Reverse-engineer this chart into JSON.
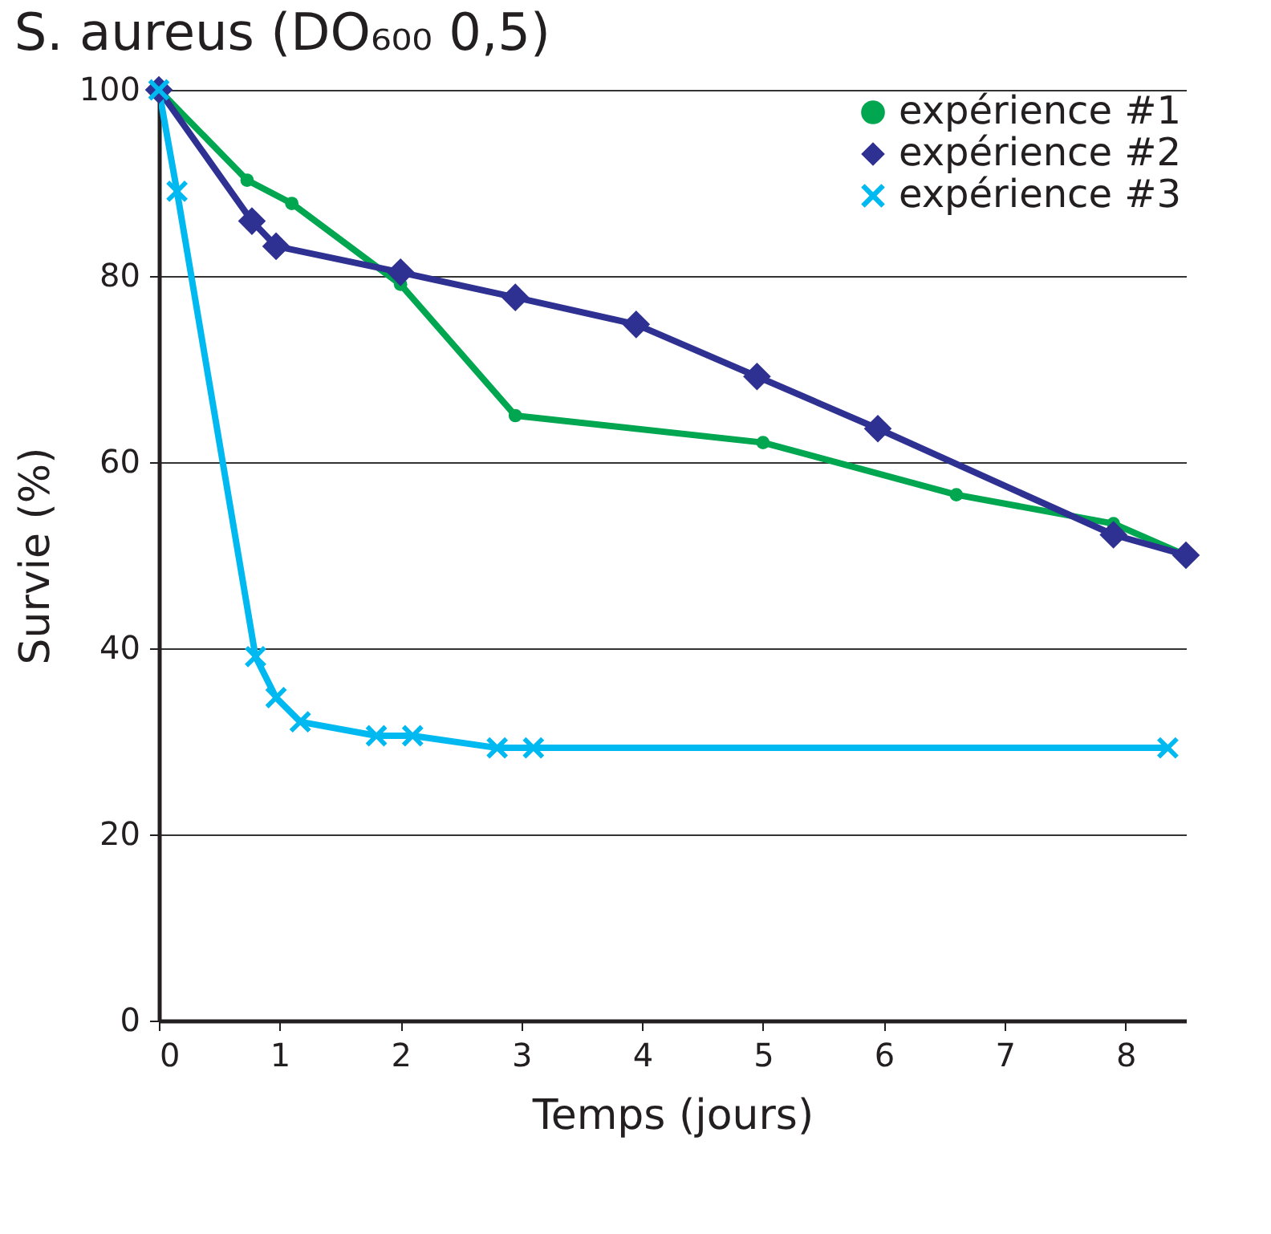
{
  "chart_data": {
    "type": "line",
    "title": "S. aureus (DO₆₀₀ 0,5)",
    "xlabel": "Temps (jours)",
    "ylabel": "Survie (%)",
    "xlim": [
      0,
      8.5
    ],
    "xticks": [
      0,
      1,
      2,
      3,
      4,
      5,
      6,
      7,
      8
    ],
    "ylim": [
      0,
      100
    ],
    "yticks": [
      0,
      20,
      40,
      60,
      80,
      100
    ],
    "grid": "y",
    "legend": "top right",
    "line_style": "solid",
    "series": [
      {
        "name": "expérience #1",
        "color": "#00a650",
        "marker": "circle",
        "x": [
          0,
          0.73,
          1.1,
          2.0,
          2.95,
          5.0,
          6.6,
          7.9,
          8.5
        ],
        "values": [
          100,
          90.3,
          87.8,
          79.1,
          65.0,
          62.1,
          56.5,
          53.4,
          50
        ]
      },
      {
        "name": "expérience #2",
        "color": "#2e3192",
        "marker": "diamond",
        "x": [
          0,
          0.77,
          0.97,
          2.0,
          2.95,
          3.95,
          4.95,
          5.95,
          7.9,
          8.5
        ],
        "values": [
          100,
          85.9,
          83.2,
          80.4,
          77.7,
          74.8,
          69.2,
          63.6,
          52.2,
          50
        ]
      },
      {
        "name": "expérience #3",
        "color": "#00b9f1",
        "marker": "cross",
        "x": [
          0,
          0.15,
          0.8,
          0.97,
          1.17,
          1.8,
          2.1,
          2.8,
          3.1,
          8.35
        ],
        "values": [
          100,
          89.1,
          39.1,
          34.7,
          32.1,
          30.6,
          30.6,
          29.3,
          29.3,
          29.3
        ]
      }
    ]
  }
}
